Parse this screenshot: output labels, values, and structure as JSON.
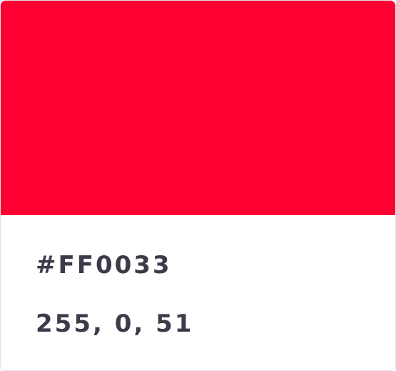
{
  "color": {
    "swatch_hex": "#FF0033",
    "hex_label": "#FF0033",
    "rgb_label": "255, 0, 51"
  },
  "colors": {
    "text": "#3d3b4a",
    "border": "#e3e3e6"
  }
}
